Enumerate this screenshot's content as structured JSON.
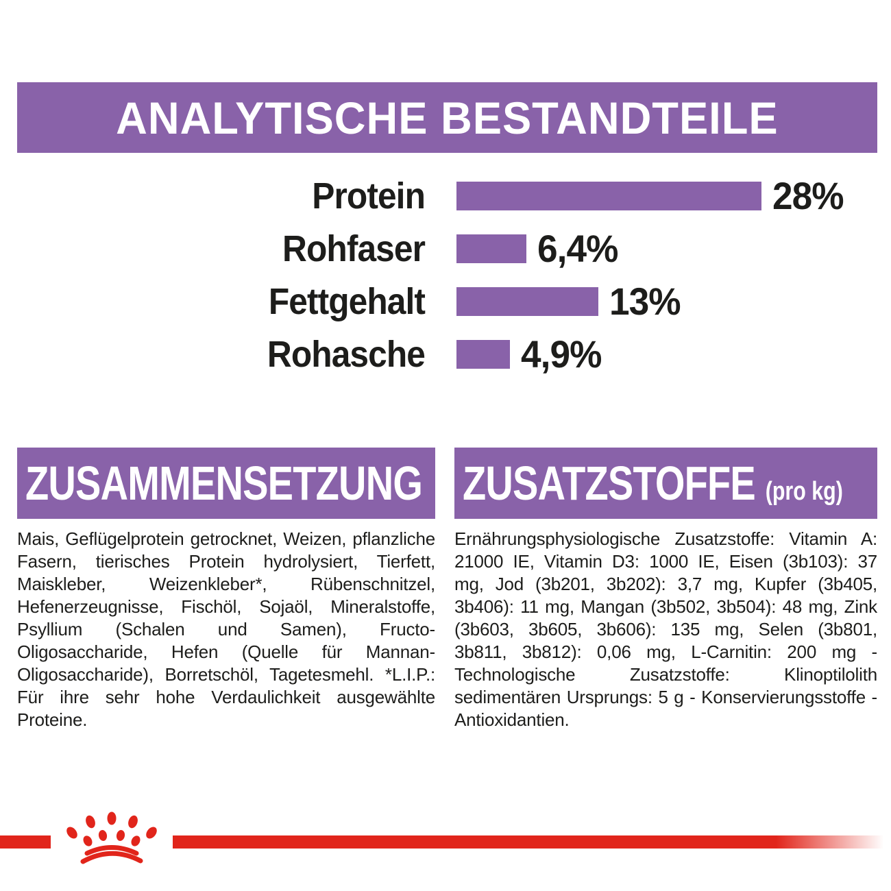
{
  "header": {
    "title": "ANALYTISCHE BESTANDTEILE"
  },
  "chart_data": {
    "type": "bar",
    "orientation": "horizontal",
    "title": "ANALYTISCHE BESTANDTEILE",
    "unit": "%",
    "xlim": [
      0,
      28
    ],
    "grid": false,
    "bar_color": "#8962A9",
    "categories": [
      "Protein",
      "Rohfaser",
      "Fettgehalt",
      "Rohasche"
    ],
    "values": [
      28,
      6.4,
      13,
      4.9
    ],
    "rows": [
      {
        "label": "Protein",
        "value": 28,
        "display": "28%"
      },
      {
        "label": "Rohfaser",
        "value": 6.4,
        "display": "6,4%"
      },
      {
        "label": "Fettgehalt",
        "value": 13,
        "display": "13%"
      },
      {
        "label": "Rohasche",
        "value": 4.9,
        "display": "4,9%"
      }
    ]
  },
  "sections": {
    "composition": {
      "title": "ZUSAMMENSETZUNG",
      "body": "Mais, Geflügelprotein getrocknet, Weizen, pflanzliche Fasern, tierisches Protein hydrolysiert, Tierfett, Maiskleber, Weizenkleber*, Rübenschnitzel, Hefenerzeugnisse, Fischöl, Sojaöl, Mineralstoffe, Psyllium (Schalen und Samen), Fructo-Oligosaccharide, Hefen (Quelle für Mannan-Oligosaccharide), Borretschöl, Tagetesmehl. *L.I.P.: Für ihre sehr hohe Verdaulichkeit ausgewählte Proteine."
    },
    "additives": {
      "title": "ZUSATZSTOFFE",
      "title_suffix": "(pro kg)",
      "body": "Ernährungsphysiologische Zusatzstoffe: Vitamin A: 21000 IE, Vitamin D3: 1000 IE, Eisen (3b103): 37 mg, Jod (3b201, 3b202): 3,7 mg, Kupfer (3b405, 3b406): 11 mg, Mangan (3b502, 3b504): 48 mg, Zink (3b603, 3b605, 3b606): 135 mg, Selen (3b801, 3b811, 3b812): 0,06 mg, L-Carnitin: 200 mg - Technologische Zusatzstoffe: Klinoptilolith sedimentären Ursprungs: 5 g - Konservierungsstoffe - Antioxidantien."
    }
  },
  "footer": {
    "logo_icon": "royal-canin-crown-icon"
  },
  "colors": {
    "purple": "#8962A9",
    "red": "#E1251B",
    "text": "#1d1d1b",
    "background": "#ffffff"
  }
}
